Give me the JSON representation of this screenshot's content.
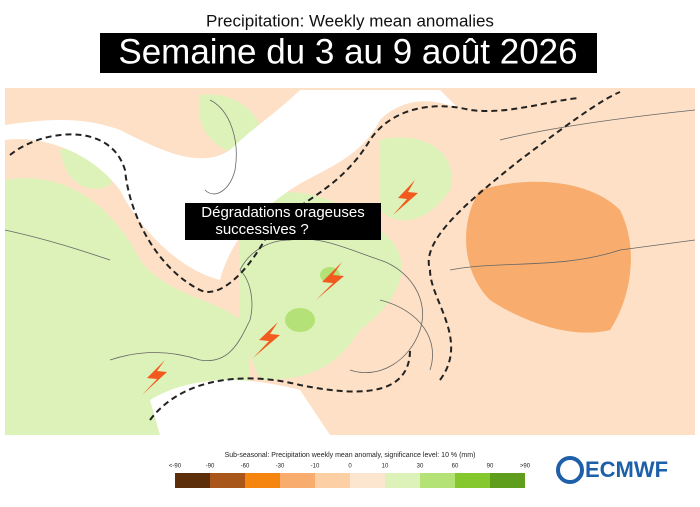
{
  "header": {
    "title": "Precipitation: Weekly mean anomalies",
    "subtitle": "Semaine du 3 au 9 août 2026"
  },
  "annotation": {
    "lines": [
      "Dégradations orageuses",
      "successives ?"
    ]
  },
  "legend": {
    "title": "Sub-seasonal: Precipitation weekly mean anomaly, significance level: 10 % (mm)",
    "labels": [
      "<-90",
      "-90",
      "-60",
      "-30",
      "-10",
      "0",
      "10",
      "30",
      "60",
      "90",
      ">90"
    ],
    "colors": [
      "#5c2e0a",
      "#a8561a",
      "#f5850f",
      "#f8ad6e",
      "#fccfa4",
      "#fde6cf",
      "#dcf2b8",
      "#b4e276",
      "#84c82e",
      "#5f9e1c"
    ]
  },
  "logo": "ECMWF"
}
